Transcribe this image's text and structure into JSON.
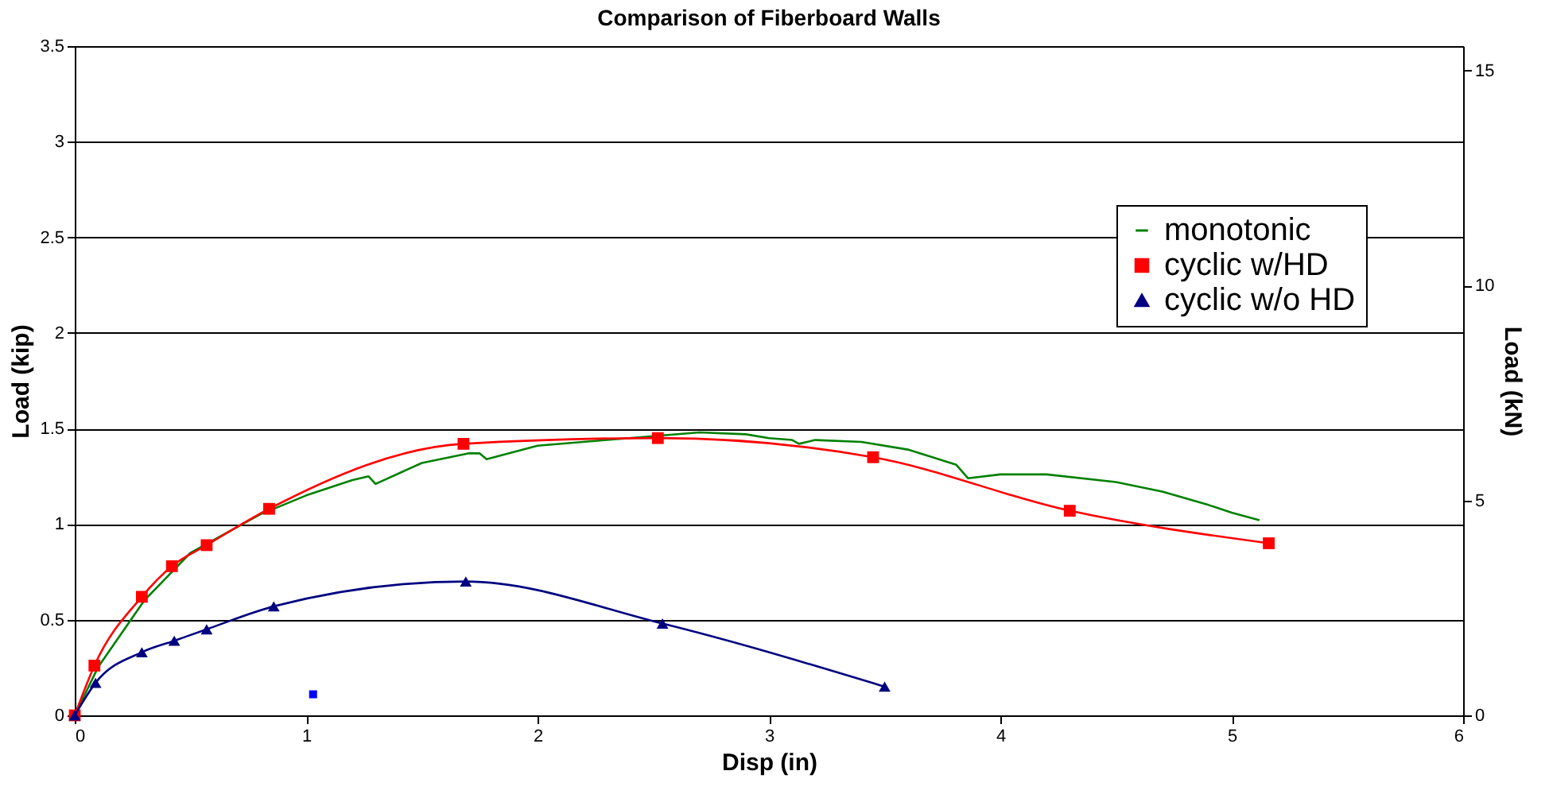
{
  "chart_data": {
    "type": "line",
    "title": "Comparison of Fiberboard Walls",
    "xlabel": "Disp (in)",
    "ylabel": "Load (kip)",
    "y2label": "Load (kN)",
    "xlim": [
      0,
      6
    ],
    "xticks": [
      0,
      1,
      2,
      3,
      4,
      5,
      6
    ],
    "ylim": [
      0,
      3.5
    ],
    "yticks": [
      0,
      0.5,
      1,
      1.5,
      2,
      2.5,
      3,
      3.5
    ],
    "y2lim": [
      0,
      15.57
    ],
    "y2ticks": [
      0,
      5,
      10,
      15
    ],
    "grid": "y",
    "legend": "right",
    "line_style": "solid",
    "series": [
      {
        "name": "monotonic",
        "color": "#008000",
        "marker": "none",
        "x": [
          0,
          0.1,
          0.3,
          0.5,
          0.8,
          1.0,
          1.2,
          1.27,
          1.3,
          1.5,
          1.7,
          1.75,
          1.78,
          2.0,
          2.3,
          2.5,
          2.7,
          2.9,
          3.0,
          3.1,
          3.13,
          3.2,
          3.4,
          3.6,
          3.81,
          3.86,
          4.0,
          4.2,
          4.5,
          4.7,
          4.9,
          5.0,
          5.12
        ],
        "values": [
          0,
          0.25,
          0.6,
          0.85,
          1.05,
          1.15,
          1.23,
          1.25,
          1.21,
          1.32,
          1.37,
          1.37,
          1.34,
          1.41,
          1.44,
          1.46,
          1.48,
          1.47,
          1.45,
          1.44,
          1.42,
          1.44,
          1.43,
          1.39,
          1.31,
          1.24,
          1.26,
          1.26,
          1.22,
          1.17,
          1.1,
          1.06,
          1.02
        ]
      },
      {
        "name": "cyclic w/HD",
        "color": "#ff0000",
        "marker": "square",
        "x": [
          0,
          0.085,
          0.29,
          0.42,
          0.57,
          0.84,
          1.68,
          2.52,
          3.45,
          4.3,
          5.16
        ],
        "values": [
          0,
          0.26,
          0.62,
          0.78,
          0.89,
          1.08,
          1.42,
          1.45,
          1.35,
          1.07,
          0.9
        ]
      },
      {
        "name": "cyclic w/o HD",
        "color": "#000080",
        "marker": "triangle",
        "x": [
          0,
          0.09,
          0.29,
          0.43,
          0.57,
          0.86,
          1.69,
          2.54,
          3.5
        ],
        "values": [
          0,
          0.17,
          0.33,
          0.39,
          0.45,
          0.57,
          0.7,
          0.48,
          0.15
        ]
      },
      {
        "type": "scatter",
        "color": "#0000ff",
        "marker": "square",
        "x": [
          1.03
        ],
        "values": [
          0.11
        ]
      }
    ]
  }
}
